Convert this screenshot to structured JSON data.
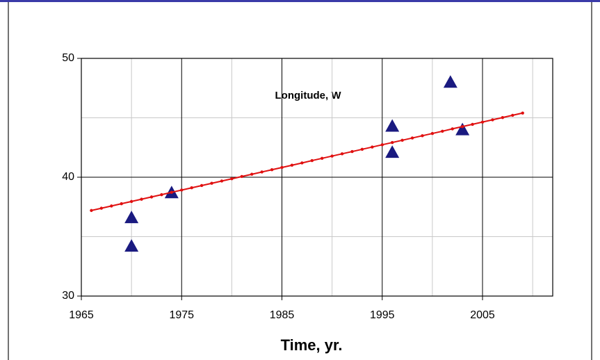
{
  "chart_data": {
    "type": "scatter",
    "annotation": "Longitude, W",
    "x_label": "Time, yr.",
    "xlim": [
      1965,
      2012
    ],
    "xticks": [
      1965,
      1975,
      1985,
      1995,
      2005
    ],
    "xminor": [
      1970,
      1980,
      1990,
      2000,
      2010
    ],
    "ylim": [
      30,
      50
    ],
    "yticks": [
      30,
      40,
      50
    ],
    "yminor": [
      35,
      45
    ],
    "grid": true,
    "series": [
      {
        "mode": "markers",
        "color": "#1a1a80",
        "x": [
          1970,
          1970,
          1974,
          1996,
          1996,
          2001.8,
          2003
        ],
        "values": [
          36.6,
          34.2,
          38.7,
          44.3,
          42.1,
          48,
          44
        ]
      },
      {
        "mode": "lines+markers",
        "color": "#e01010",
        "x": [
          1966,
          1967,
          1968,
          1969,
          1970,
          1971,
          1972,
          1973,
          1974,
          1975,
          1976,
          1977,
          1978,
          1979,
          1980,
          1981,
          1982,
          1983,
          1984,
          1985,
          1986,
          1987,
          1988,
          1989,
          1990,
          1991,
          1992,
          1993,
          1994,
          1995,
          1996,
          1997,
          1998,
          1999,
          2000,
          2001,
          2002,
          2003,
          2004,
          2005,
          2006,
          2007,
          2008,
          2009
        ],
        "values": [
          37.2,
          37.39,
          37.58,
          37.77,
          37.96,
          38.15,
          38.34,
          38.53,
          38.73,
          38.92,
          39.11,
          39.3,
          39.49,
          39.68,
          39.87,
          40.06,
          40.25,
          40.44,
          40.63,
          40.82,
          41.01,
          41.2,
          41.4,
          41.59,
          41.78,
          41.97,
          42.16,
          42.35,
          42.54,
          42.73,
          42.92,
          43.11,
          43.3,
          43.49,
          43.68,
          43.87,
          44.07,
          44.26,
          44.45,
          44.64,
          44.83,
          45.02,
          45.21,
          45.4
        ]
      }
    ]
  }
}
